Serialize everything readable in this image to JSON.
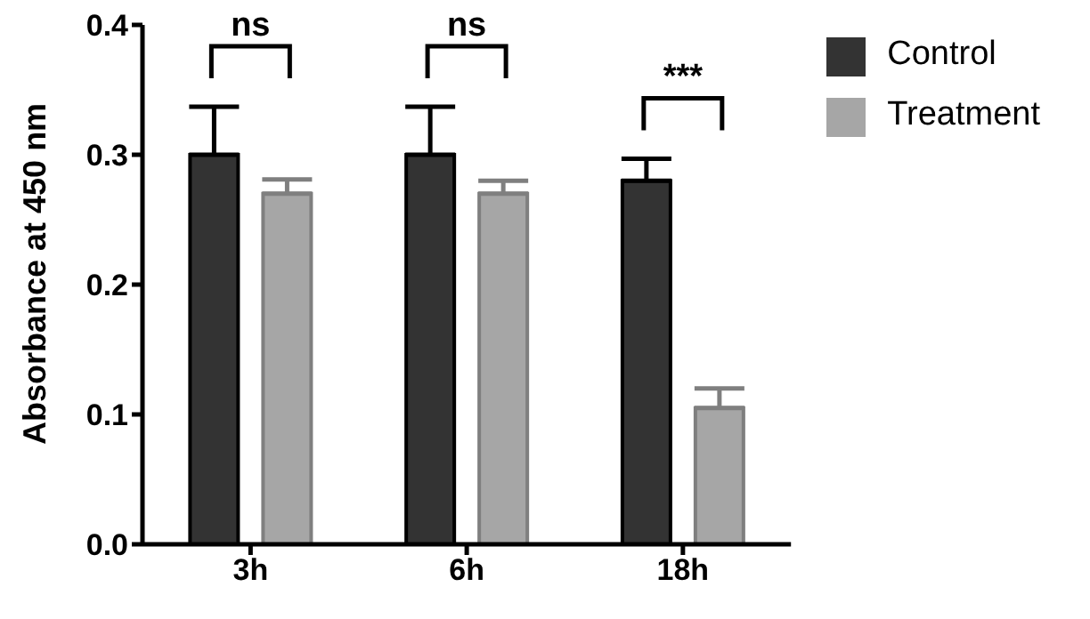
{
  "chart_data": {
    "type": "bar",
    "ylabel": "Absorbance at 450 nm",
    "categories": [
      "3h",
      "6h",
      "18h"
    ],
    "series": [
      {
        "name": "Control",
        "color": "#333333",
        "values": [
          0.3,
          0.3,
          0.28
        ],
        "errors": [
          [
            0.3,
            0.337
          ],
          [
            0.3,
            0.337
          ],
          [
            0.28,
            0.297
          ]
        ]
      },
      {
        "name": "Treatment",
        "color": "#a6a6a6",
        "values": [
          0.27,
          0.27,
          0.105
        ],
        "errors": [
          [
            0.27,
            0.281
          ],
          [
            0.27,
            0.28
          ],
          [
            0.105,
            0.12
          ]
        ]
      }
    ],
    "ylim": [
      0,
      0.4
    ],
    "yticks": [
      {
        "value": 0,
        "label": "0.0"
      },
      {
        "value": 0.1,
        "label": "0.1"
      },
      {
        "value": 0.2,
        "label": "0.2"
      },
      {
        "value": 0.3,
        "label": "0.3"
      },
      {
        "value": 0.4,
        "label": "0.4"
      }
    ],
    "annotations": [
      "ns",
      "ns",
      "***"
    ],
    "legend": "top right",
    "grid": false
  }
}
